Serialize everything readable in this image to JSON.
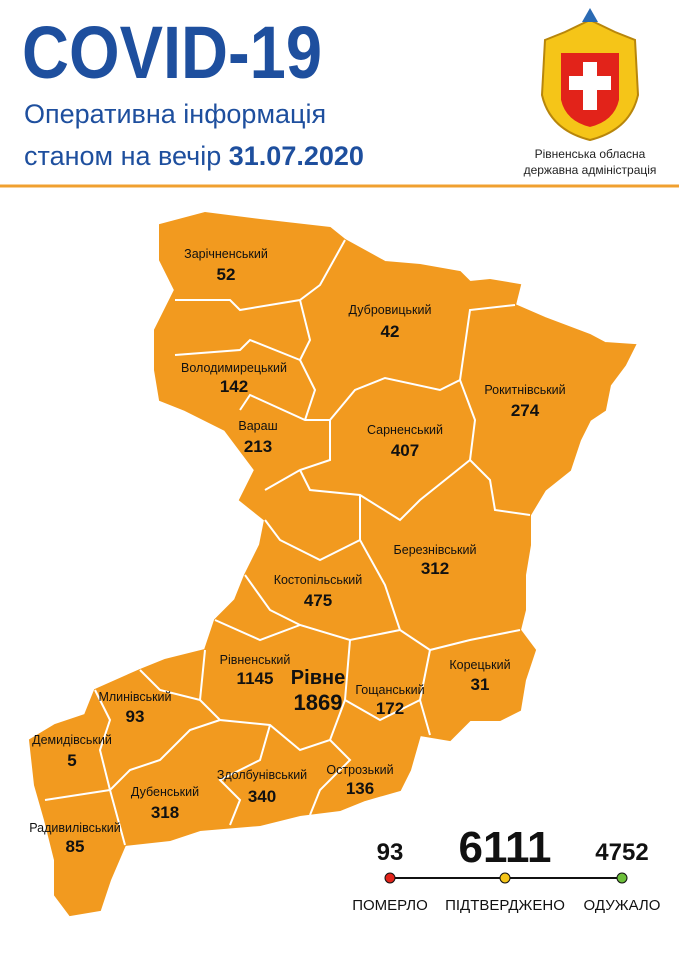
{
  "header": {
    "title": "COVID-19",
    "subtitle_line1": "Оперативна інформація",
    "subtitle_line2": "станом на вечір",
    "date": "31.07.2020"
  },
  "emblem": {
    "caption_line1": "Рівненська обласна",
    "caption_line2": "державна адміністрація"
  },
  "districts": [
    {
      "name": "Зарічненський",
      "value": "52"
    },
    {
      "name": "Дубровицький",
      "value": "42"
    },
    {
      "name": "Володимирецький",
      "value": "142"
    },
    {
      "name": "Рокитнівський",
      "value": "274"
    },
    {
      "name": "Вараш",
      "value": "213"
    },
    {
      "name": "Сарненський",
      "value": "407"
    },
    {
      "name": "Березнівський",
      "value": "312"
    },
    {
      "name": "Костопільський",
      "value": "475"
    },
    {
      "name": "Рівненський",
      "value": "1145"
    },
    {
      "name": "Рівне",
      "value": "1869"
    },
    {
      "name": "Корецький",
      "value": "31"
    },
    {
      "name": "Млинівський",
      "value": "93"
    },
    {
      "name": "Гощанський",
      "value": "172"
    },
    {
      "name": "Демидівський",
      "value": "5"
    },
    {
      "name": "Здолбунівський",
      "value": "340"
    },
    {
      "name": "Острозький",
      "value": "136"
    },
    {
      "name": "Дубенський",
      "value": "318"
    },
    {
      "name": "Радивилівський",
      "value": "85"
    }
  ],
  "summary": [
    {
      "value": "93",
      "label": "ПОМЕРЛО"
    },
    {
      "value": "6111",
      "label": "ПІДТВЕРДЖЕНО"
    },
    {
      "value": "4752",
      "label": "ОДУЖАЛО"
    }
  ]
}
